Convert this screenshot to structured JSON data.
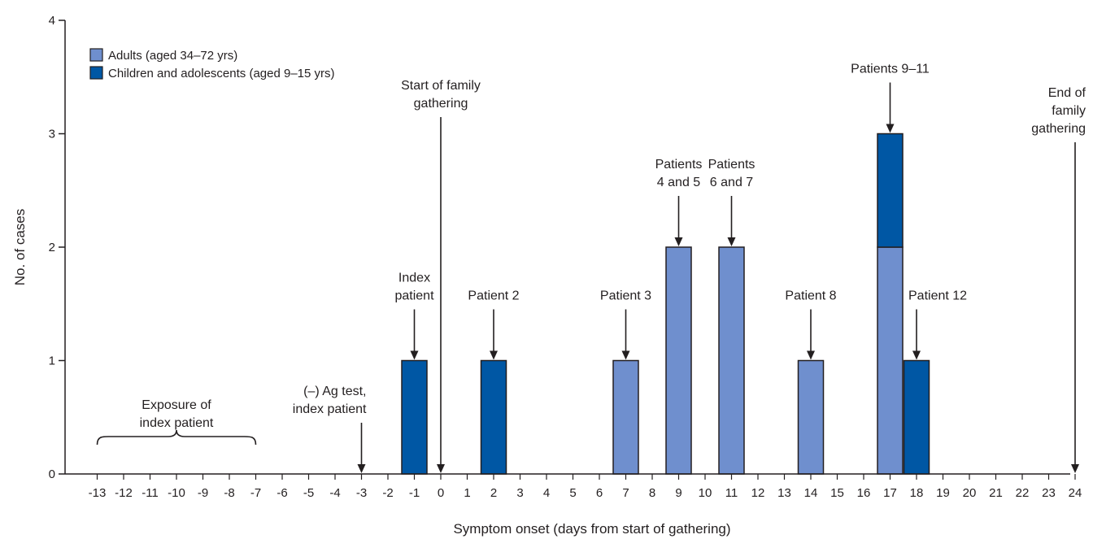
{
  "chart_data": {
    "type": "bar",
    "stacked": true,
    "xlabel": "Symptom onset (days from start of gathering)",
    "ylabel": "No. of cases",
    "ylim": [
      0,
      4
    ],
    "yticks": [
      "0",
      "1",
      "2",
      "3",
      "4"
    ],
    "xrange": [
      -13,
      24
    ],
    "xticks": [
      "-13",
      "-12",
      "-11",
      "-10",
      "-9",
      "-8",
      "-7",
      "-6",
      "-5",
      "-4",
      "-3",
      "-2",
      "-1",
      "0",
      "1",
      "2",
      "3",
      "4",
      "5",
      "6",
      "7",
      "8",
      "9",
      "10",
      "11",
      "12",
      "13",
      "14",
      "15",
      "16",
      "17",
      "18",
      "19",
      "20",
      "21",
      "22",
      "23",
      "24"
    ],
    "legend_position": "top-left",
    "grid": false,
    "series": [
      {
        "name": "Adults (aged 34–72 yrs)",
        "color": "#6f8fce",
        "x": [
          7,
          9,
          11,
          14,
          17
        ],
        "values": [
          1,
          2,
          2,
          1,
          2
        ]
      },
      {
        "name": "Children and adolescents (aged 9–15 yrs)",
        "color": "#0057a4",
        "x": [
          -1,
          2,
          17,
          18
        ],
        "values": [
          1,
          1,
          1,
          1
        ]
      }
    ],
    "annotations": [
      {
        "id": "exposure",
        "lines": [
          "Exposure of",
          "index patient"
        ],
        "range": [
          -13,
          -7
        ],
        "style": "brace"
      },
      {
        "id": "ag-test",
        "lines": [
          "(–) Ag test,",
          "index patient"
        ],
        "x": -3,
        "target_y": 0,
        "align": "end"
      },
      {
        "id": "index",
        "lines": [
          "Index",
          "patient"
        ],
        "x": -1,
        "target_y": 1
      },
      {
        "id": "start",
        "lines": [
          "Start of family",
          "gathering"
        ],
        "x": 0,
        "target_y": 0
      },
      {
        "id": "p2",
        "lines": [
          "Patient 2"
        ],
        "x": 2,
        "target_y": 1
      },
      {
        "id": "p3",
        "lines": [
          "Patient 3"
        ],
        "x": 7,
        "target_y": 1
      },
      {
        "id": "p45",
        "lines": [
          "Patients",
          "4 and 5"
        ],
        "x": 9,
        "target_y": 2
      },
      {
        "id": "p67",
        "lines": [
          "Patients",
          "6 and 7"
        ],
        "x": 11,
        "target_y": 2
      },
      {
        "id": "p8",
        "lines": [
          "Patient 8"
        ],
        "x": 14,
        "target_y": 1
      },
      {
        "id": "p911",
        "lines": [
          "Patients 9–11"
        ],
        "x": 17,
        "target_y": 3
      },
      {
        "id": "p12",
        "lines": [
          "Patient 12"
        ],
        "x": 18,
        "target_y": 1,
        "align": "start"
      },
      {
        "id": "end",
        "lines": [
          "End of",
          "family",
          "gathering"
        ],
        "x": 24,
        "target_y": 0,
        "align": "end"
      }
    ]
  }
}
